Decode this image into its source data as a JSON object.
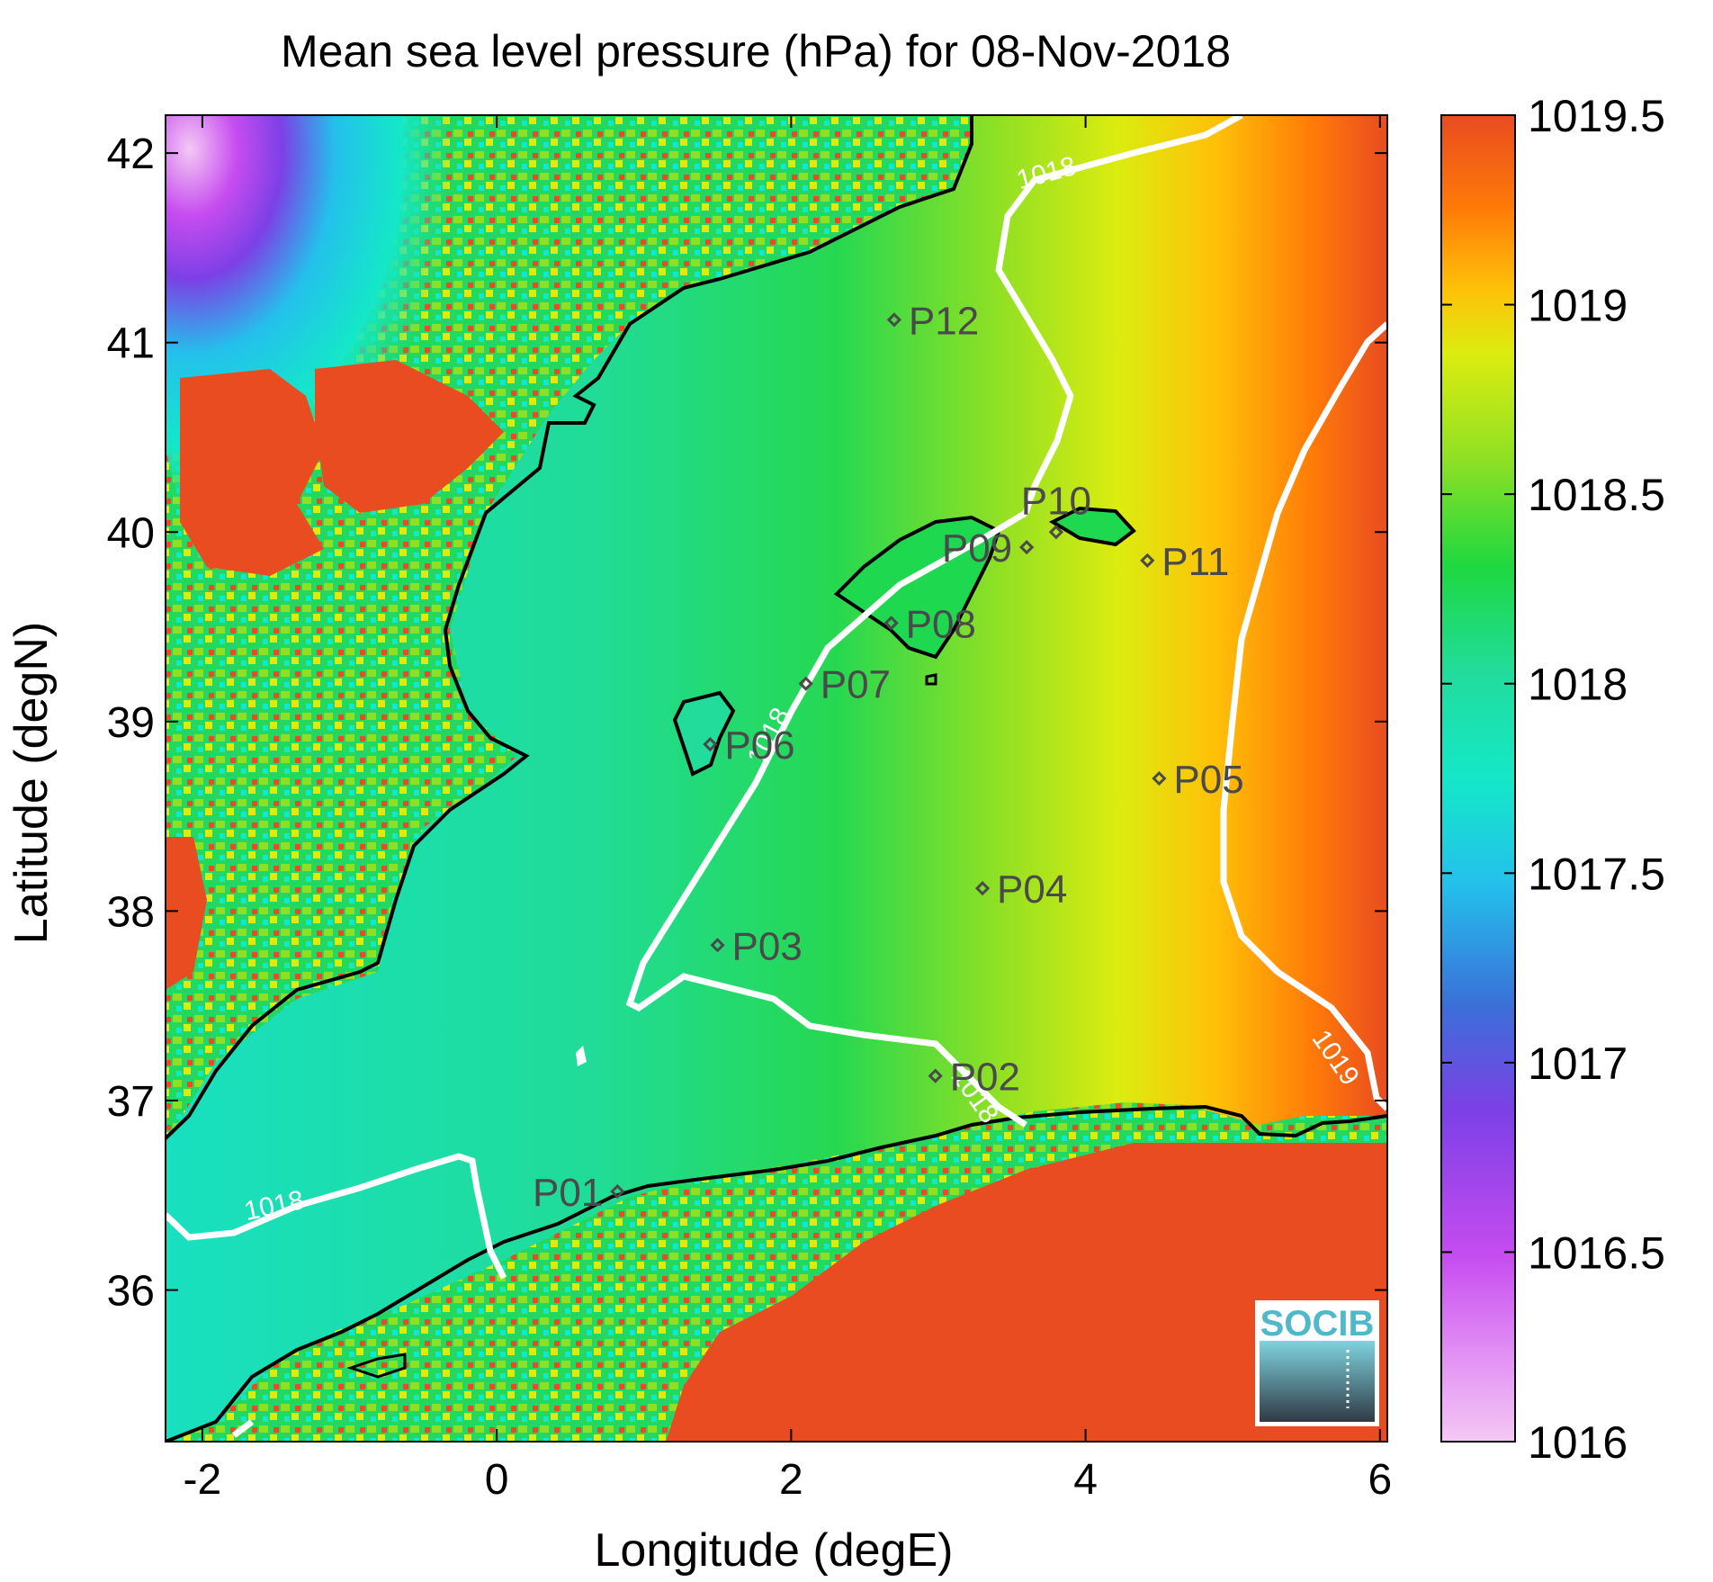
{
  "title": "Mean sea level pressure (hPa) for 08-Nov-2018",
  "axes": {
    "xlabel": "Longitude (degE)",
    "ylabel": "Latitude (degN)",
    "xlim": [
      -2.25,
      6.05
    ],
    "ylim": [
      35.2,
      42.2
    ],
    "xticks": [
      {
        "value": -2,
        "label": "-2"
      },
      {
        "value": 0,
        "label": "0"
      },
      {
        "value": 2,
        "label": "2"
      },
      {
        "value": 4,
        "label": "4"
      },
      {
        "value": 6,
        "label": "6"
      }
    ],
    "yticks": [
      {
        "value": 36,
        "label": "36"
      },
      {
        "value": 37,
        "label": "37"
      },
      {
        "value": 38,
        "label": "38"
      },
      {
        "value": 39,
        "label": "39"
      },
      {
        "value": 40,
        "label": "40"
      },
      {
        "value": 41,
        "label": "41"
      },
      {
        "value": 42,
        "label": "42"
      }
    ]
  },
  "colorbar": {
    "range": [
      1016,
      1019.5
    ],
    "ticks": [
      {
        "value": 1016,
        "label": "1016"
      },
      {
        "value": 1016.5,
        "label": "1016.5"
      },
      {
        "value": 1017,
        "label": "1017"
      },
      {
        "value": 1017.5,
        "label": "1017.5"
      },
      {
        "value": 1018,
        "label": "1018"
      },
      {
        "value": 1018.5,
        "label": "1018.5"
      },
      {
        "value": 1019,
        "label": "1019"
      },
      {
        "value": 1019.5,
        "label": "1019.5"
      }
    ],
    "colors": [
      "#f4c8f4",
      "#c64cf0",
      "#7c40e6",
      "#3a70d8",
      "#24c0ec",
      "#14e8c8",
      "#22dc9c",
      "#1ed840",
      "#8ee024",
      "#dcec10",
      "#ffc008",
      "#ff7a08",
      "#e84c20"
    ]
  },
  "stations": [
    {
      "id": "P01",
      "lon": 0.82,
      "lat": 36.52,
      "label_side": "left"
    },
    {
      "id": "P02",
      "lon": 2.98,
      "lat": 37.13,
      "label_side": "right"
    },
    {
      "id": "P03",
      "lon": 1.5,
      "lat": 37.82,
      "label_side": "right"
    },
    {
      "id": "P04",
      "lon": 3.3,
      "lat": 38.12,
      "label_side": "right"
    },
    {
      "id": "P05",
      "lon": 4.5,
      "lat": 38.7,
      "label_side": "right"
    },
    {
      "id": "P06",
      "lon": 1.45,
      "lat": 38.88,
      "label_side": "right"
    },
    {
      "id": "P07",
      "lon": 2.1,
      "lat": 39.2,
      "label_side": "right"
    },
    {
      "id": "P08",
      "lon": 2.68,
      "lat": 39.52,
      "label_side": "right"
    },
    {
      "id": "P09",
      "lon": 3.6,
      "lat": 39.92,
      "label_side": "left"
    },
    {
      "id": "P10",
      "lon": 3.8,
      "lat": 40.0,
      "label_side": "above"
    },
    {
      "id": "P11",
      "lon": 4.42,
      "lat": 39.85,
      "label_side": "right"
    },
    {
      "id": "P12",
      "lon": 2.7,
      "lat": 41.12,
      "label_side": "right"
    }
  ],
  "contour_labels": [
    {
      "text": "1018",
      "lon": 3.75,
      "lat": 41.85,
      "angle": -15
    },
    {
      "text": "1018",
      "lon": 1.9,
      "lat": 38.9,
      "angle": -62
    },
    {
      "text": "1018",
      "lon": 3.2,
      "lat": 37.0,
      "angle": 55
    },
    {
      "text": "1018",
      "lon": -1.5,
      "lat": 36.4,
      "angle": -12
    },
    {
      "text": "1019",
      "lon": 5.65,
      "lat": 37.2,
      "angle": 55
    }
  ],
  "logo": {
    "text": "SOCIB"
  }
}
